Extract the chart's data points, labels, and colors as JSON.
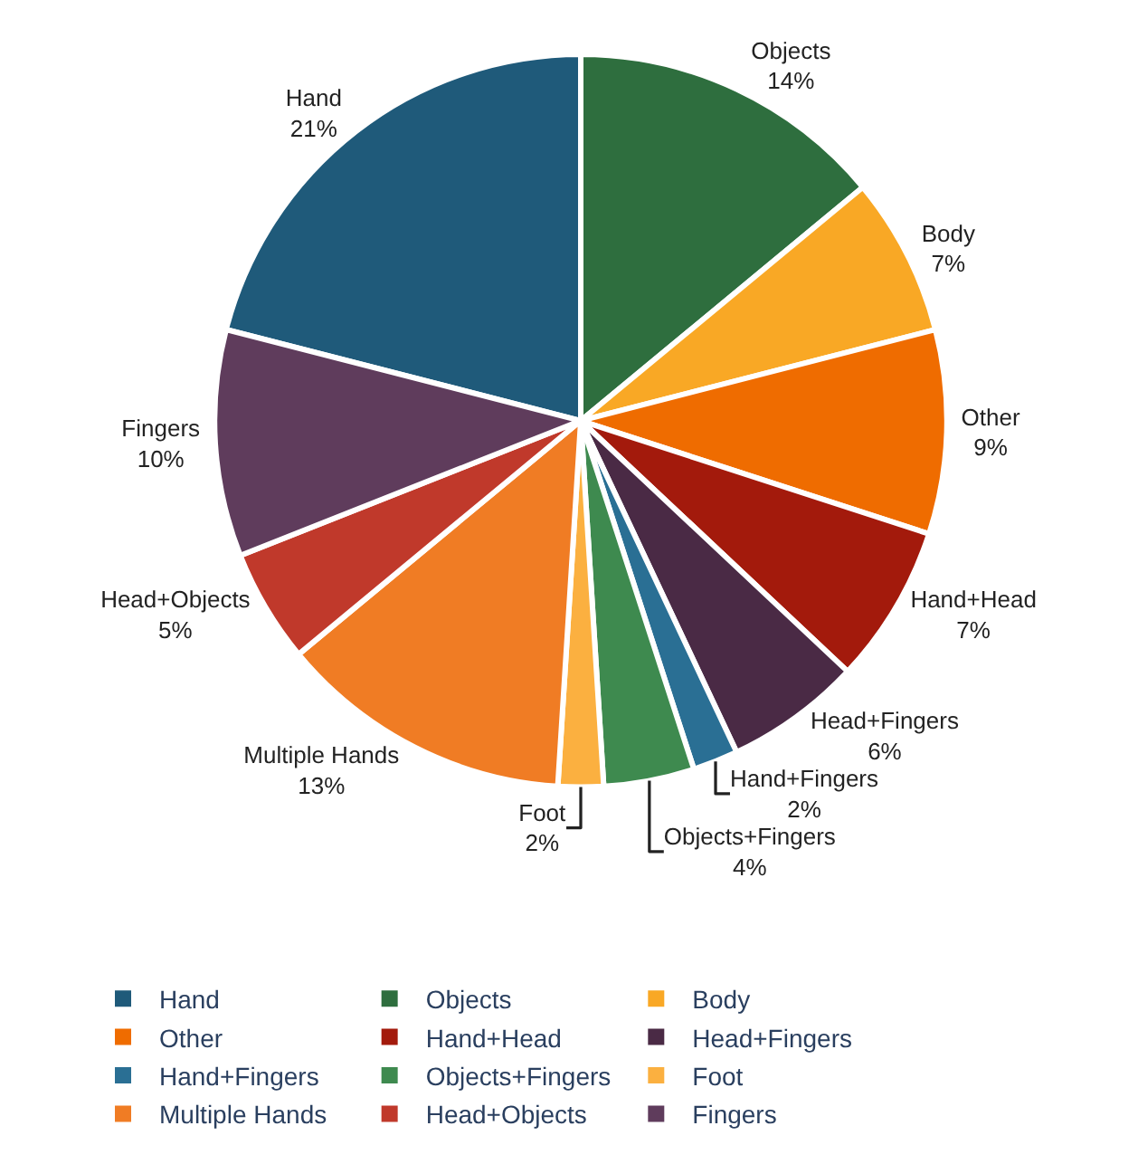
{
  "chart_data": {
    "type": "pie",
    "categories": [
      "Hand",
      "Objects",
      "Body",
      "Other",
      "Hand+Head",
      "Head+Fingers",
      "Hand+Fingers",
      "Objects+Fingers",
      "Foot",
      "Multiple Hands",
      "Head+Objects",
      "Fingers"
    ],
    "values": [
      21,
      14,
      7,
      9,
      7,
      6,
      2,
      4,
      2,
      13,
      5,
      10
    ],
    "value_labels": [
      "21%",
      "14%",
      "7%",
      "9%",
      "7%",
      "6%",
      "2%",
      "4%",
      "2%",
      "13%",
      "5%",
      "10%"
    ],
    "colors": [
      "#1f5a7a",
      "#2e6e3e",
      "#f9a825",
      "#ef6c00",
      "#a31a0c",
      "#4a2a45",
      "#2a6f94",
      "#3e8a4f",
      "#fbb040",
      "#f07c24",
      "#c0392b",
      "#5f3c5c"
    ],
    "legend": "bottom"
  }
}
